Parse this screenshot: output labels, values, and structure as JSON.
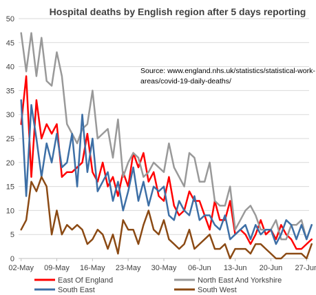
{
  "chart_data": {
    "type": "line",
    "title": "Hospital deaths by English region after 5 days reporting",
    "annotation_lines": [
      "Source: www.england.nhs.uk/statistics/statistical-work-",
      "areas/covid-19-daily-deaths/"
    ],
    "xlabel": "",
    "ylabel": "",
    "ylim": [
      0,
      50
    ],
    "yticks": [
      0,
      5,
      10,
      15,
      20,
      25,
      30,
      35,
      40,
      45,
      50
    ],
    "x_start": "02-May",
    "x_end": "27-Jun",
    "xtick_labels": [
      "02-May",
      "09-May",
      "16-May",
      "23-May",
      "30-May",
      "06-Jun",
      "13-Jun",
      "20-Jun",
      "27-Jun"
    ],
    "grid": "horizontal",
    "legend_position": "bottom",
    "series": [
      {
        "name": "East Of England",
        "color": "#ff0000",
        "values": [
          28,
          38,
          17,
          33,
          25,
          28,
          26,
          28,
          17,
          18,
          18,
          19,
          20,
          26,
          18,
          16,
          20,
          15,
          17,
          13,
          18,
          15,
          22,
          19,
          22,
          16,
          18,
          13,
          12,
          17,
          11,
          9,
          10,
          14,
          12,
          12,
          9,
          6,
          12,
          8,
          8,
          12,
          5,
          6,
          5,
          3,
          5,
          8,
          5,
          6,
          4,
          7,
          5,
          4,
          2,
          2,
          3,
          4
        ]
      },
      {
        "name": "North East And Yorkshire",
        "color": "#999999",
        "values": [
          47,
          39,
          47,
          38,
          46,
          37,
          36,
          43,
          38,
          28,
          26,
          24,
          27,
          28,
          35,
          25,
          26,
          27,
          21,
          29,
          17,
          20,
          22,
          21,
          17,
          18,
          20,
          19,
          18,
          24,
          19,
          17,
          15,
          22,
          21,
          16,
          16,
          20,
          12,
          11,
          11,
          15,
          6,
          8,
          10,
          11,
          9,
          6,
          6,
          6,
          8,
          4,
          4,
          7,
          7,
          8,
          4,
          7
        ]
      },
      {
        "name": "South East",
        "color": "#3d6fa6",
        "values": [
          33,
          13,
          32,
          25,
          17,
          24,
          20,
          26,
          19,
          20,
          26,
          15,
          30,
          18,
          25,
          14,
          16,
          18,
          12,
          16,
          10,
          14,
          19,
          12,
          16,
          11,
          15,
          14,
          15,
          9,
          8,
          12,
          10,
          9,
          13,
          8,
          9,
          9,
          7,
          6,
          9,
          4,
          5,
          6,
          7,
          4,
          7,
          5,
          6,
          6,
          3,
          5,
          8,
          7,
          4,
          7,
          4,
          7
        ]
      },
      {
        "name": "South West",
        "color": "#8b4a14",
        "values": [
          6,
          8,
          16,
          14,
          17,
          15,
          5,
          10,
          5,
          7,
          6,
          7,
          6,
          3,
          4,
          6,
          5,
          2,
          5,
          1,
          8,
          6,
          6,
          3,
          7,
          10,
          6,
          5,
          8,
          4,
          3,
          2,
          3,
          6,
          2,
          3,
          4,
          5,
          2,
          2,
          3,
          0,
          2,
          2,
          2,
          1,
          3,
          3,
          2,
          1,
          0,
          0,
          1,
          1,
          1,
          1,
          0,
          3
        ]
      }
    ]
  }
}
